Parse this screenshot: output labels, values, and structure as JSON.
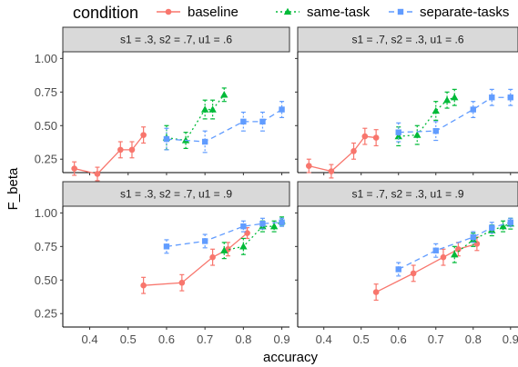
{
  "chart_data": {
    "type": "line",
    "xlabel": "accuracy",
    "ylabel": "F_beta",
    "xlim": [
      0.33,
      0.92
    ],
    "ylim": [
      0.15,
      1.05
    ],
    "x_ticks": [
      0.4,
      0.5,
      0.6,
      0.7,
      0.8,
      0.9
    ],
    "x_tick_labels": [
      "0.4",
      "0.5",
      "0.6",
      "0.7",
      "0.8",
      "0.9"
    ],
    "y_ticks": [
      0.25,
      0.5,
      0.75,
      1.0
    ],
    "y_tick_labels": [
      "0.25",
      "0.50",
      "0.75",
      "1.00"
    ],
    "grid": false,
    "legend": {
      "title": "condition",
      "position": "top",
      "entries": [
        {
          "name": "baseline",
          "color": "#f8766d",
          "marker": "circle",
          "dash": "solid"
        },
        {
          "name": "same-task",
          "color": "#00ba38",
          "marker": "triangle",
          "dash": "dotted"
        },
        {
          "name": "separate-tasks",
          "color": "#619cff",
          "marker": "square",
          "dash": "dashed"
        }
      ]
    },
    "panels": [
      {
        "title": "s1 = .3, s2 = .7, u1 = .6",
        "series": [
          {
            "name": "baseline",
            "x": [
              0.36,
              0.42,
              0.48,
              0.51,
              0.54
            ],
            "y": [
              0.18,
              0.14,
              0.32,
              0.32,
              0.43
            ],
            "err": [
              0.05,
              0.05,
              0.06,
              0.06,
              0.06
            ]
          },
          {
            "name": "same-task",
            "x": [
              0.6,
              0.65,
              0.7,
              0.72,
              0.75
            ],
            "y": [
              0.41,
              0.39,
              0.62,
              0.62,
              0.73
            ],
            "err": [
              0.09,
              0.06,
              0.07,
              0.07,
              0.05
            ]
          },
          {
            "name": "separate-tasks",
            "x": [
              0.6,
              0.7,
              0.8,
              0.85,
              0.9
            ],
            "y": [
              0.4,
              0.38,
              0.53,
              0.53,
              0.62
            ],
            "err": [
              0.08,
              0.08,
              0.07,
              0.07,
              0.06
            ]
          }
        ]
      },
      {
        "title": "s1 = .7, s2 = .3, u1 = .6",
        "series": [
          {
            "name": "baseline",
            "x": [
              0.36,
              0.42,
              0.48,
              0.51,
              0.54
            ],
            "y": [
              0.2,
              0.16,
              0.31,
              0.42,
              0.41
            ],
            "err": [
              0.05,
              0.05,
              0.06,
              0.06,
              0.06
            ]
          },
          {
            "name": "same-task",
            "x": [
              0.6,
              0.65,
              0.7,
              0.73,
              0.75
            ],
            "y": [
              0.42,
              0.43,
              0.61,
              0.69,
              0.71
            ],
            "err": [
              0.07,
              0.07,
              0.07,
              0.06,
              0.06
            ]
          },
          {
            "name": "separate-tasks",
            "x": [
              0.6,
              0.7,
              0.8,
              0.85,
              0.9
            ],
            "y": [
              0.45,
              0.46,
              0.62,
              0.71,
              0.71
            ],
            "err": [
              0.07,
              0.07,
              0.06,
              0.06,
              0.06
            ]
          }
        ]
      },
      {
        "title": "s1 = .3, s2 = .7, u1 = .9",
        "series": [
          {
            "name": "baseline",
            "x": [
              0.54,
              0.64,
              0.72,
              0.76,
              0.81
            ],
            "y": [
              0.46,
              0.48,
              0.67,
              0.73,
              0.85
            ],
            "err": [
              0.06,
              0.06,
              0.06,
              0.05,
              0.04
            ]
          },
          {
            "name": "same-task",
            "x": [
              0.75,
              0.8,
              0.85,
              0.88,
              0.9
            ],
            "y": [
              0.72,
              0.75,
              0.9,
              0.9,
              0.94
            ],
            "err": [
              0.06,
              0.06,
              0.04,
              0.04,
              0.03
            ]
          },
          {
            "name": "separate-tasks",
            "x": [
              0.6,
              0.7,
              0.8,
              0.85,
              0.9
            ],
            "y": [
              0.75,
              0.79,
              0.9,
              0.92,
              0.93
            ],
            "err": [
              0.05,
              0.05,
              0.04,
              0.04,
              0.03
            ]
          }
        ]
      },
      {
        "title": "s1 = .7, s2 = .3, u1 = .9",
        "series": [
          {
            "name": "baseline",
            "x": [
              0.54,
              0.64,
              0.72,
              0.76,
              0.81
            ],
            "y": [
              0.41,
              0.55,
              0.67,
              0.73,
              0.77
            ],
            "err": [
              0.06,
              0.06,
              0.06,
              0.05,
              0.05
            ]
          },
          {
            "name": "same-task",
            "x": [
              0.75,
              0.8,
              0.85,
              0.88,
              0.9
            ],
            "y": [
              0.69,
              0.8,
              0.87,
              0.9,
              0.92
            ],
            "err": [
              0.06,
              0.05,
              0.04,
              0.04,
              0.04
            ]
          },
          {
            "name": "separate-tasks",
            "x": [
              0.6,
              0.7,
              0.8,
              0.85,
              0.9
            ],
            "y": [
              0.58,
              0.72,
              0.82,
              0.89,
              0.93
            ],
            "err": [
              0.05,
              0.05,
              0.04,
              0.04,
              0.03
            ]
          }
        ]
      }
    ]
  }
}
